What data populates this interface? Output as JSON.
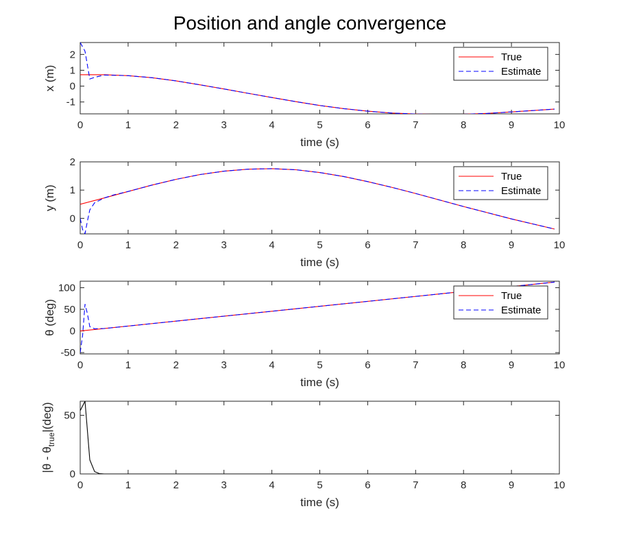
{
  "figure": {
    "title": "Position and angle convergence"
  },
  "chart_data": [
    {
      "type": "line",
      "ylabel": "x (m)",
      "xlabel": "time (s)",
      "xlim": [
        0,
        10
      ],
      "ylim": [
        -1.75,
        2.75
      ],
      "xticks": [
        0,
        1,
        2,
        3,
        4,
        5,
        6,
        7,
        8,
        9,
        10
      ],
      "yticks": [
        -1,
        0,
        1,
        2
      ],
      "legend": {
        "position": "top-right"
      },
      "series": [
        {
          "name": "True",
          "color": "#ff0000",
          "style": "solid",
          "x": [
            0,
            0.5,
            1,
            1.5,
            2,
            2.5,
            3,
            3.5,
            4,
            4.5,
            5,
            5.5,
            6,
            6.5,
            7,
            7.5,
            7.9,
            8.5,
            9,
            9.5,
            9.9
          ],
          "y": [
            0.72,
            0.72,
            0.66,
            0.53,
            0.33,
            0.08,
            -0.18,
            -0.45,
            -0.72,
            -0.98,
            -1.22,
            -1.42,
            -1.58,
            -1.7,
            -1.76,
            -1.78,
            -1.78,
            -1.72,
            -1.63,
            -1.53,
            -1.45
          ]
        },
        {
          "name": "Estimate",
          "color": "#0000ff",
          "style": "dashed",
          "x": [
            0,
            0.1,
            0.2,
            0.3,
            0.5,
            1,
            1.5,
            2,
            2.5,
            3,
            3.5,
            4,
            4.5,
            5,
            5.5,
            6,
            6.5,
            7,
            7.5,
            7.9,
            8.5,
            9,
            9.5,
            9.9
          ],
          "y": [
            2.75,
            2.2,
            0.45,
            0.55,
            0.7,
            0.66,
            0.53,
            0.33,
            0.08,
            -0.18,
            -0.45,
            -0.72,
            -0.98,
            -1.22,
            -1.42,
            -1.58,
            -1.7,
            -1.76,
            -1.78,
            -1.78,
            -1.72,
            -1.63,
            -1.53,
            -1.45
          ]
        }
      ]
    },
    {
      "type": "line",
      "ylabel": "y (m)",
      "xlabel": "time (s)",
      "xlim": [
        0,
        10
      ],
      "ylim": [
        -0.55,
        2
      ],
      "xticks": [
        0,
        1,
        2,
        3,
        4,
        5,
        6,
        7,
        8,
        9,
        10
      ],
      "yticks": [
        0,
        1,
        2
      ],
      "legend": {
        "position": "top-right"
      },
      "series": [
        {
          "name": "True",
          "color": "#ff0000",
          "style": "solid",
          "x": [
            0,
            0.5,
            1,
            1.5,
            2,
            2.5,
            3,
            3.5,
            4,
            4.5,
            5,
            5.5,
            6,
            6.5,
            7,
            7.5,
            8,
            8.5,
            9,
            9.5,
            9.9
          ],
          "y": [
            0.5,
            0.72,
            0.95,
            1.18,
            1.38,
            1.55,
            1.67,
            1.74,
            1.76,
            1.72,
            1.62,
            1.48,
            1.3,
            1.1,
            0.88,
            0.65,
            0.42,
            0.2,
            -0.02,
            -0.22,
            -0.38
          ]
        },
        {
          "name": "Estimate",
          "color": "#0000ff",
          "style": "dashed",
          "x": [
            0,
            0.05,
            0.1,
            0.15,
            0.2,
            0.3,
            0.5,
            0.7,
            1,
            1.5,
            2,
            2.5,
            3,
            3.5,
            4,
            4.5,
            5,
            5.5,
            6,
            6.5,
            7,
            7.5,
            8,
            8.5,
            9,
            9.5,
            9.9
          ],
          "y": [
            0.0,
            -0.4,
            -0.55,
            -0.1,
            0.3,
            0.55,
            0.72,
            0.83,
            0.95,
            1.18,
            1.38,
            1.55,
            1.67,
            1.74,
            1.76,
            1.72,
            1.62,
            1.48,
            1.3,
            1.1,
            0.88,
            0.65,
            0.42,
            0.2,
            -0.02,
            -0.22,
            -0.38
          ]
        }
      ]
    },
    {
      "type": "line",
      "ylabel": "θ (deg)",
      "xlabel": "time (s)",
      "xlim": [
        0,
        10
      ],
      "ylim": [
        -53,
        115
      ],
      "xticks": [
        0,
        1,
        2,
        3,
        4,
        5,
        6,
        7,
        8,
        9,
        10
      ],
      "yticks": [
        -50,
        0,
        50,
        100
      ],
      "legend": {
        "position": "top-right"
      },
      "series": [
        {
          "name": "True",
          "color": "#ff0000",
          "style": "solid",
          "x": [
            0,
            9.9
          ],
          "y": [
            0,
            113
          ]
        },
        {
          "name": "Estimate",
          "color": "#0000ff",
          "style": "dashed",
          "x": [
            0,
            0.05,
            0.1,
            0.15,
            0.2,
            0.3,
            0.4,
            0.5,
            9.9
          ],
          "y": [
            -50,
            -10,
            62,
            40,
            10,
            5,
            5.5,
            5.7,
            113
          ]
        }
      ]
    },
    {
      "type": "line",
      "ylabel_main": "|θ - θ",
      "ylabel_sub": "true",
      "ylabel_end": "|(deg)",
      "xlabel": "time (s)",
      "xlim": [
        0,
        10
      ],
      "ylim": [
        0,
        62
      ],
      "xticks": [
        0,
        1,
        2,
        3,
        4,
        5,
        6,
        7,
        8,
        9,
        10
      ],
      "yticks": [
        0,
        50
      ],
      "series": [
        {
          "name": "",
          "color": "#000000",
          "style": "solid",
          "x": [
            0,
            0.1,
            0.2,
            0.3,
            0.4,
            0.5,
            1,
            9.9
          ],
          "y": [
            54,
            62,
            12,
            2,
            0.3,
            0,
            0,
            0
          ]
        }
      ]
    }
  ]
}
